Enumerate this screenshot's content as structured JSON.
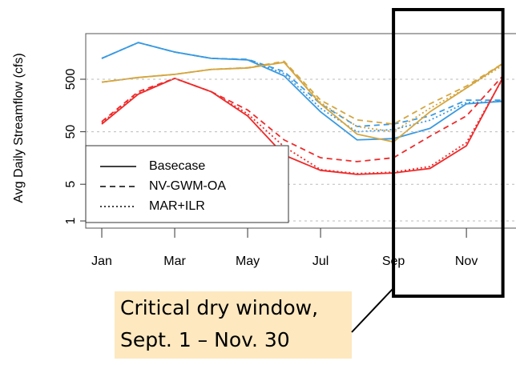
{
  "chart_data": {
    "type": "line",
    "ylabel": "Avg Daily Streamflow (cfs)",
    "x": [
      1,
      2,
      3,
      4,
      5,
      6,
      7,
      8,
      9,
      10,
      11,
      12
    ],
    "xlim": [
      0.56,
      12.36
    ],
    "xticks": [
      {
        "value": 1,
        "label": "Jan"
      },
      {
        "value": 3,
        "label": "Mar"
      },
      {
        "value": 5,
        "label": "May"
      },
      {
        "value": 7,
        "label": "Jul"
      },
      {
        "value": 9,
        "label": "Sep"
      },
      {
        "value": 11,
        "label": "Nov"
      }
    ],
    "ylim": [
      0.73,
      3700
    ],
    "yticks": [
      1,
      5,
      50,
      500
    ],
    "log_y": true,
    "grid": true,
    "series": [
      {
        "color": "#3a9ae0",
        "style": "solid",
        "values": [
          1250,
          2500,
          1650,
          1250,
          1170,
          580,
          120,
          35,
          37,
          58,
          170,
          190
        ]
      },
      {
        "color": "#3a9ae0",
        "style": "dashed",
        "values": [
          1250,
          2500,
          1650,
          1250,
          1200,
          700,
          170,
          63,
          70,
          100,
          200,
          200
        ]
      },
      {
        "color": "#3a9ae0",
        "style": "dotted",
        "values": [
          1250,
          2500,
          1650,
          1250,
          1180,
          640,
          140,
          50,
          55,
          83,
          180,
          190
        ]
      },
      {
        "color": "#d4a640",
        "style": "solid",
        "values": [
          440,
          540,
          620,
          770,
          820,
          1050,
          170,
          45,
          32,
          120,
          340,
          1000
        ]
      },
      {
        "color": "#d4a640",
        "style": "dashed",
        "values": [
          440,
          540,
          620,
          770,
          830,
          1100,
          200,
          84,
          70,
          170,
          370,
          1000
        ]
      },
      {
        "color": "#d4a640",
        "style": "dotted",
        "values": [
          440,
          540,
          620,
          770,
          820,
          1050,
          180,
          63,
          50,
          140,
          340,
          920
        ]
      },
      {
        "color": "#ee2b2b",
        "style": "solid",
        "values": [
          70,
          260,
          520,
          290,
          100,
          18,
          9.2,
          7.7,
          8.2,
          10,
          27,
          540
        ]
      },
      {
        "color": "#ee2b2b",
        "style": "dashed",
        "values": [
          78,
          290,
          520,
          290,
          130,
          35,
          16,
          13.5,
          16,
          41,
          100,
          580
        ]
      },
      {
        "color": "#ee2b2b",
        "style": "dotted",
        "values": [
          74,
          270,
          520,
          290,
          110,
          26,
          9.5,
          8,
          8.5,
          10.9,
          31,
          520
        ]
      }
    ],
    "legend": {
      "labels": [
        "Basecase",
        "NV-GWM-OA",
        "MAR+ILR"
      ],
      "styles": [
        "solid",
        "dashed",
        "dotted"
      ],
      "color": "#000000"
    },
    "annotation": [
      "Critical dry window,",
      "Sept. 1 – Nov. 30"
    ],
    "highlight": {
      "xlim": [
        9,
        12
      ]
    }
  }
}
